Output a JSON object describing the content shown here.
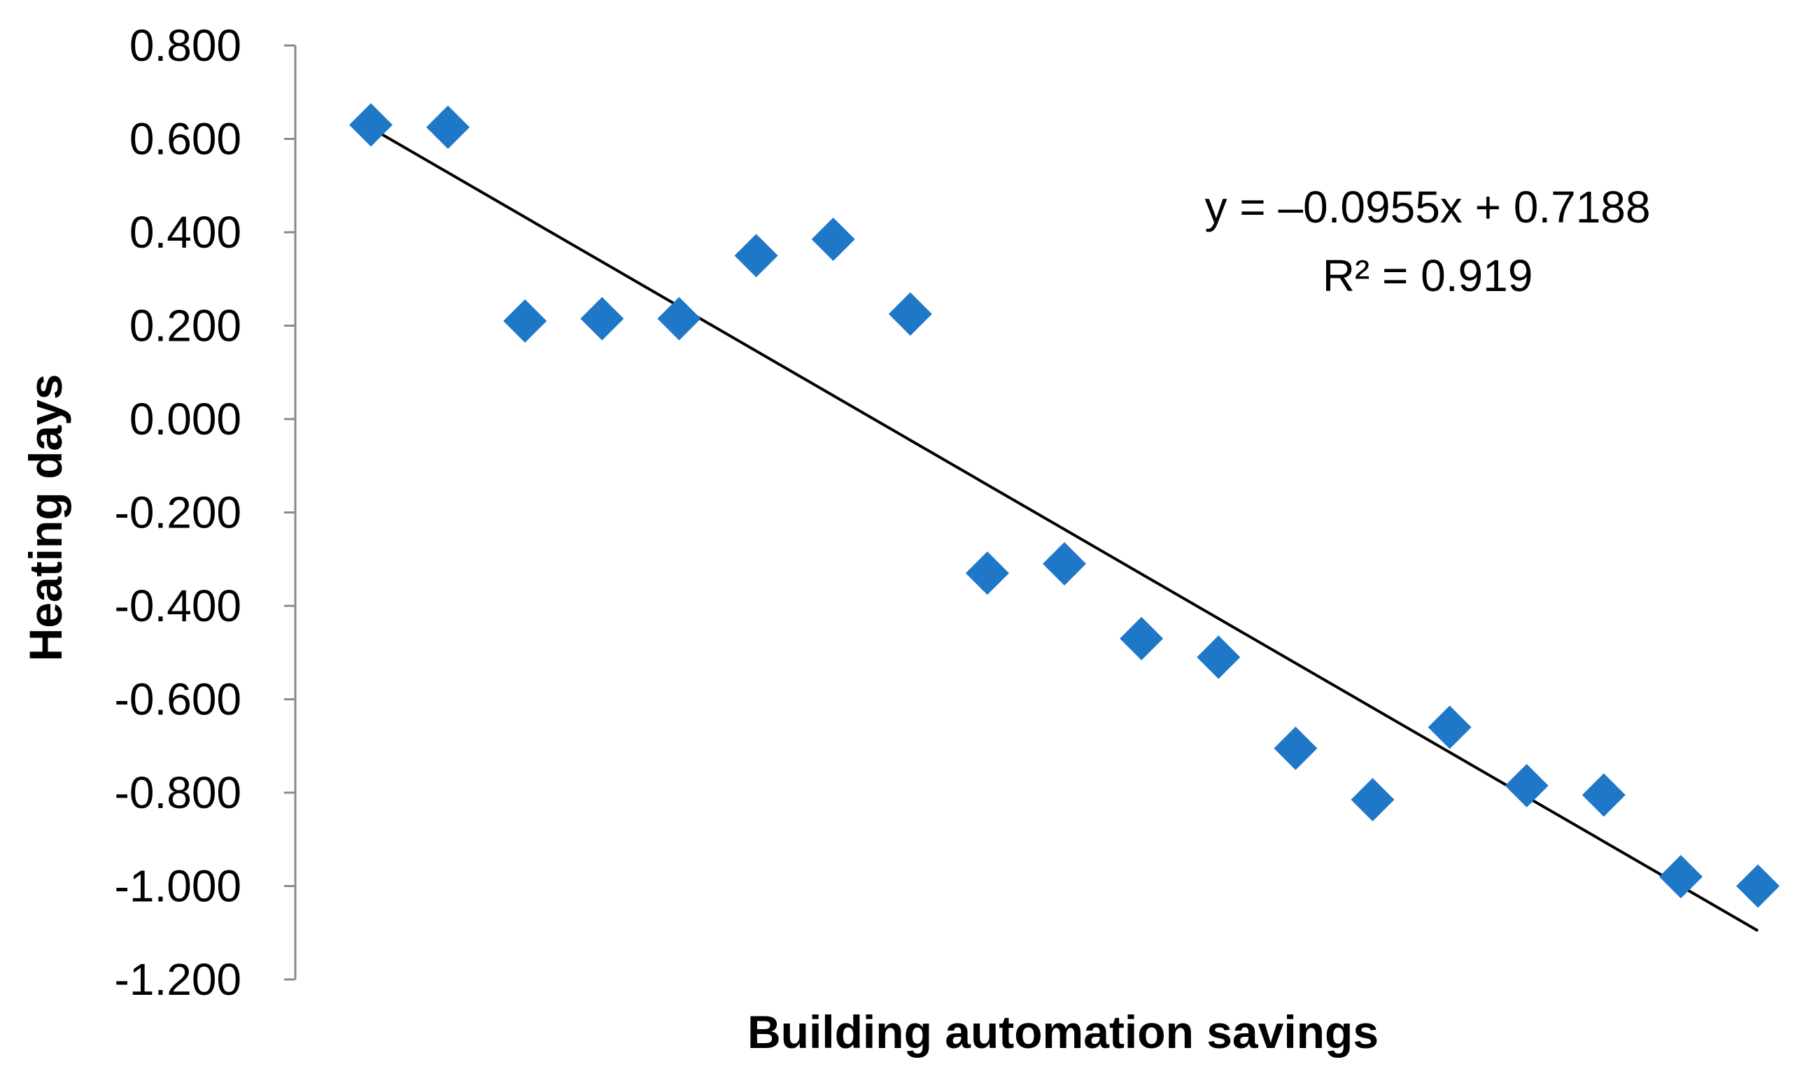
{
  "chart_data": {
    "type": "scatter",
    "title": "",
    "xlabel": "Building automation savings",
    "ylabel": "Heating days",
    "x": [
      1,
      2,
      3,
      4,
      5,
      6,
      7,
      8,
      9,
      10,
      11,
      12,
      13,
      14,
      15,
      16,
      17,
      18,
      19
    ],
    "y": [
      0.63,
      0.625,
      0.21,
      0.215,
      0.215,
      0.35,
      0.385,
      0.225,
      -0.33,
      -0.31,
      -0.47,
      -0.51,
      -0.705,
      -0.815,
      -0.66,
      -0.785,
      -0.805,
      -0.98,
      -1.0
    ],
    "ylim": [
      -1.2,
      0.8
    ],
    "y_ticks": [
      "0.800",
      "0.600",
      "0.400",
      "0.200",
      "0.000",
      "-0.200",
      "-0.400",
      "-0.600",
      "-0.800",
      "-1.000",
      "-1.200"
    ],
    "y_tick_values": [
      0.8,
      0.6,
      0.4,
      0.2,
      0.0,
      -0.2,
      -0.4,
      -0.6,
      -0.8,
      -1.0,
      -1.2
    ],
    "x_tick_labels_shown": false,
    "trendline": {
      "type": "linear",
      "slope": -0.0955,
      "intercept": 0.7188,
      "equation": "y = –0.0955x + 0.7188",
      "r_squared": "R² = 0.919",
      "color": "#000000"
    },
    "marker": {
      "shape": "diamond",
      "color": "#1F77C8"
    },
    "grid": false,
    "legend": "none"
  }
}
